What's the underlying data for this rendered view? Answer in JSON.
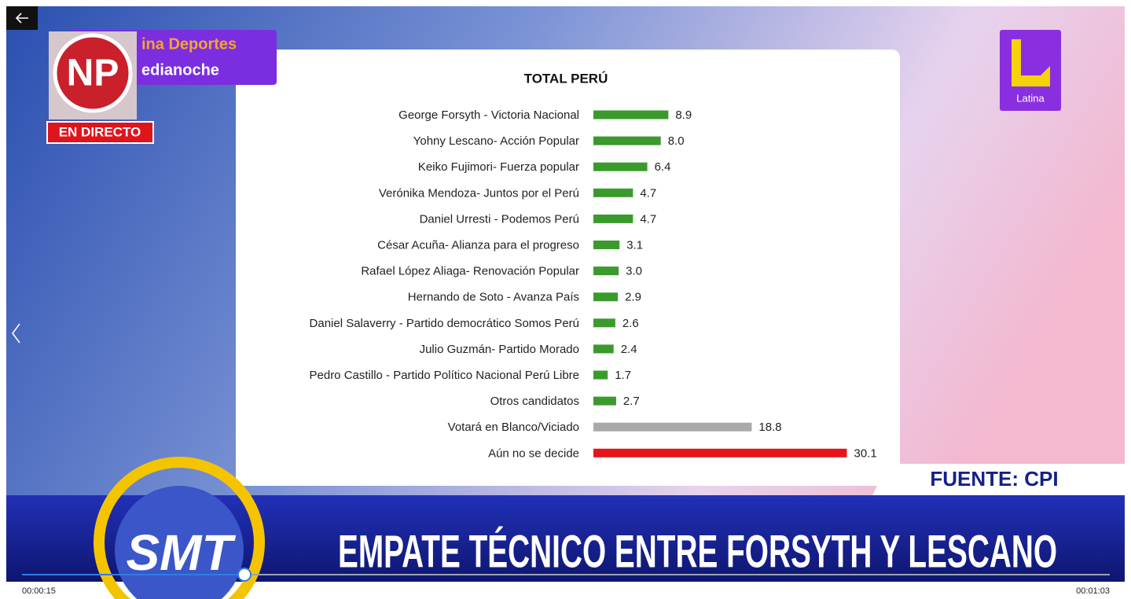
{
  "chart_data": {
    "type": "barh",
    "title": "TOTAL PERÚ",
    "categories": [
      "George Forsyth - Victoria Nacional",
      "Yohny Lescano- Acción Popular",
      "Keiko Fujimori- Fuerza popular",
      "Verónika Mendoza- Juntos por el Perú",
      "Daniel Urresti - Podemos Perú",
      "César Acuña- Alianza para el progreso",
      "Rafael López Aliaga- Renovación Popular",
      "Hernando de Soto - Avanza País",
      "Daniel Salaverry - Partido democrático Somos Perú",
      "Julio Guzmán- Partido Morado",
      "Pedro Castillo - Partido Político Nacional Perú Libre",
      "Otros candidatos",
      "Votará en Blanco/Viciado",
      "Aún no se decide"
    ],
    "values": [
      8.9,
      8.0,
      6.4,
      4.7,
      4.7,
      3.1,
      3.0,
      2.9,
      2.6,
      2.4,
      1.7,
      2.7,
      18.8,
      30.1
    ],
    "value_labels": [
      "8.9",
      "8.0",
      "6.4",
      "4.7",
      "4.7",
      "3.1",
      "3.0",
      "2.9",
      "2.6",
      "2.4",
      "1.7",
      "2.7",
      "18.8",
      "30.1"
    ],
    "colors": [
      "#3b9a2c",
      "#3b9a2c",
      "#3b9a2c",
      "#3b9a2c",
      "#3b9a2c",
      "#3b9a2c",
      "#3b9a2c",
      "#3b9a2c",
      "#3b9a2c",
      "#3b9a2c",
      "#3b9a2c",
      "#3b9a2c",
      "#a9a9a9",
      "#e6151b"
    ],
    "xlim": [
      0,
      35
    ]
  },
  "broadcast": {
    "show_line1": "ina Deportes",
    "show_line2": "edianoche",
    "logo": "NP",
    "live": "EN DIRECTO",
    "channel": "Latina",
    "source": "FUENTE: CPI",
    "program": "SMT",
    "headline": "EMPATE TÉCNICO ENTRE FORSYTH Y LESCANO"
  },
  "player": {
    "elapsed": "00:00:15",
    "duration": "00:01:03"
  }
}
